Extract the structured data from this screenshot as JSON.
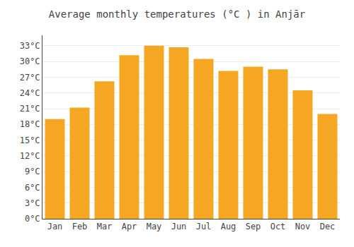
{
  "chart_data": {
    "type": "bar",
    "title": "Average monthly temperatures (°C ) in Anjār",
    "categories": [
      "Jan",
      "Feb",
      "Mar",
      "Apr",
      "May",
      "Jun",
      "Jul",
      "Aug",
      "Sep",
      "Oct",
      "Nov",
      "Dec"
    ],
    "values": [
      19.0,
      21.2,
      26.2,
      31.2,
      33.0,
      32.7,
      30.5,
      28.2,
      29.0,
      28.5,
      24.5,
      20.0
    ],
    "color": "#F5A623",
    "ylim": [
      0,
      35
    ],
    "yticks": [
      {
        "value": 0,
        "label": "0°C"
      },
      {
        "value": 3,
        "label": "3°C"
      },
      {
        "value": 6,
        "label": "6°C"
      },
      {
        "value": 9,
        "label": "9°C"
      },
      {
        "value": 12,
        "label": "12°C"
      },
      {
        "value": 15,
        "label": "15°C"
      },
      {
        "value": 18,
        "label": "18°C"
      },
      {
        "value": 21,
        "label": "21°C"
      },
      {
        "value": 24,
        "label": "24°C"
      },
      {
        "value": 27,
        "label": "27°C"
      },
      {
        "value": 30,
        "label": "30°C"
      },
      {
        "value": 33,
        "label": "33°C"
      }
    ],
    "grid": true
  }
}
